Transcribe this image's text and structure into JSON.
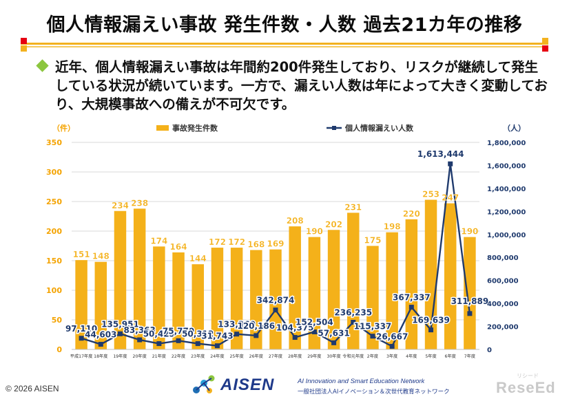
{
  "title": "個人情報漏えい事故 発生件数・人数 過去21カ年の推移",
  "bullet": "近年、個人情報漏えい事故は年間約200件発生しており、リスクが継続して発生している状況が続いています。一方で、漏えい人数は年によって大きく変動しており、大規模事故への備えが不可欠です。",
  "colors": {
    "bar": "#f4b11a",
    "line": "#1f3a6d",
    "accent_red": "#e60012",
    "accent_yellow": "#f3b21f",
    "bullet_green": "#8cc63f"
  },
  "chart_data": {
    "type": "bar+line",
    "left_unit": "（件）",
    "right_unit": "（人）",
    "categories": [
      "平成17年度",
      "18年度",
      "19年度",
      "20年度",
      "21年度",
      "22年度",
      "23年度",
      "24年度",
      "25年度",
      "26年度",
      "27年度",
      "28年度",
      "29年度",
      "30年度",
      "令和元年度",
      "2年度",
      "3年度",
      "4年度",
      "5年度",
      "6年度",
      "7年度"
    ],
    "series": [
      {
        "name": "事故発生件数",
        "type": "bar",
        "axis": "left",
        "values": [
          151,
          148,
          234,
          238,
          174,
          164,
          144,
          172,
          172,
          168,
          169,
          208,
          190,
          202,
          231,
          175,
          198,
          220,
          253,
          247,
          190
        ]
      },
      {
        "name": "個人情報漏えい人数",
        "type": "line",
        "axis": "right",
        "values": [
          97110,
          44603,
          135951,
          83363,
          50423,
          75770,
          50312,
          31743,
          133360,
          120186,
          342874,
          104375,
          152504,
          57631,
          236235,
          115337,
          26667,
          367337,
          169639,
          1613444,
          311889
        ]
      }
    ],
    "bar_labels": [
      "151",
      "148",
      "234",
      "238",
      "174",
      "164",
      "144",
      "172",
      "172",
      "168",
      "169",
      "208",
      "190",
      "202",
      "231",
      "175",
      "198",
      "220",
      "253",
      "247",
      "190"
    ],
    "line_labels": [
      "97,110",
      "44,603",
      "135,951",
      "83,363",
      "50,423",
      "75,770",
      "50,312",
      "31,743",
      "133,360",
      "120,186",
      "342,874",
      "104,375",
      "152,504",
      "57,631",
      "236,235",
      "115,337",
      "26,667",
      "367,337",
      "169,639",
      "1,613,444",
      "311,889"
    ],
    "left_ticks": [
      "0",
      "50",
      "100",
      "150",
      "200",
      "250",
      "300",
      "350"
    ],
    "right_ticks": [
      "0",
      "200,000",
      "400,000",
      "600,000",
      "800,000",
      "1,000,000",
      "1,200,000",
      "1,400,000",
      "1,600,000",
      "1,800,000"
    ],
    "ylim_left": [
      0,
      350
    ],
    "ylim_right": [
      0,
      1800000
    ],
    "legend_position": "top"
  },
  "footer": {
    "copyright": "© 2026 AISEN",
    "logo_name": "AISEN",
    "logo_sub1": "AI Innovation and Smart Education Network",
    "logo_sub2": "一般社団法人AIイノベーション＆次世代教育ネットワーク"
  },
  "watermark": {
    "main": "ReseEd",
    "small": "リシード"
  }
}
